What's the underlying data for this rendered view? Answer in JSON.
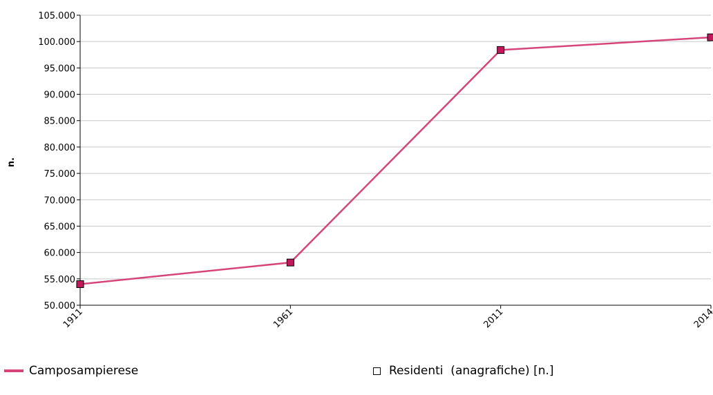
{
  "chart_data": {
    "type": "line",
    "x": [
      "1911",
      "1961",
      "2011",
      "2014"
    ],
    "series": [
      {
        "name": "Camposampierese",
        "values": [
          54000,
          58100,
          98400,
          100800
        ],
        "color": "#d6457a",
        "marker_color": "#c2185b"
      }
    ],
    "ylabel": "n.",
    "xlabel": "",
    "ylim": [
      50000,
      105000
    ],
    "yticks": [
      50000,
      55000,
      60000,
      65000,
      70000,
      75000,
      80000,
      85000,
      90000,
      95000,
      100000,
      105000
    ],
    "ytick_labels": [
      "50.000",
      "55.000",
      "60.000",
      "65.000",
      "70.000",
      "75.000",
      "80.000",
      "85.000",
      "90.000",
      "95.000",
      "100.000",
      "105.000"
    ],
    "grid": true,
    "legend_position": "bottom"
  },
  "legend": {
    "series_label": "Camposampierese",
    "indicator_label": "Residenti  (anagrafiche) [n.]"
  }
}
